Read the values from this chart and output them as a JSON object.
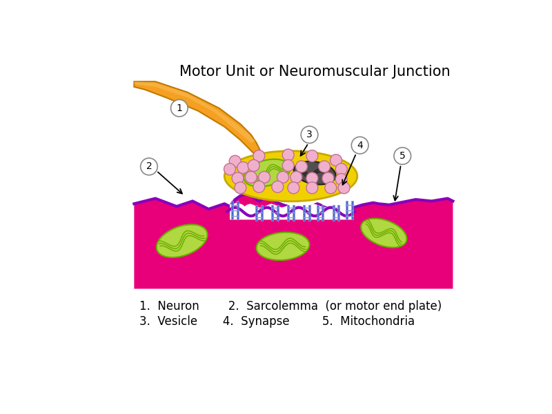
{
  "title": "Motor Unit or Neuromuscular Junction",
  "title_fontsize": 15,
  "background_color": "#ffffff",
  "legend_line1": "1.  Neuron        2.  Sarcolemma  (or motor end plate)",
  "legend_line2": "3.  Vesicle       4.  Synapse         5.  Mitochondria",
  "legend_fontsize": 12,
  "muscle_color": "#e8007a",
  "muscle_dark": "#9900aa",
  "neuron_orange": "#f5a020",
  "neuron_light": "#f8c060",
  "terminal_yellow": "#f0d000",
  "terminal_edge": "#c8a800",
  "mito_green_fill": "#b0d840",
  "mito_green_dark": "#6aaa00",
  "mito_dark_fill": "#505050",
  "mito_dark_stroke": "#202020",
  "vesicle_pink": "#f0b0cc",
  "vesicle_edge": "#c07090",
  "synapse_fold_color": "#5566cc",
  "synapse_fold_light": "#8899dd",
  "purple_border": "#8800bb",
  "white_gap": "#ffffff"
}
